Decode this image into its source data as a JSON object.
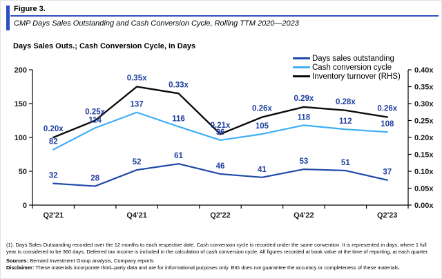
{
  "figure": {
    "label": "Figure 3.",
    "title": "CMP Days Sales Outstanding and Cash Conversion Cycle, Rolling TTM 2020—2023",
    "axis_caption": "Days Sales Outs.; Cash Conversion Cycle, in Days"
  },
  "colors": {
    "accent_blue": "#2E4EC4",
    "axis_line": "#000000",
    "data_label": "#1F3FA0"
  },
  "chart_data": {
    "type": "line",
    "title": "CMP Days Sales Outstanding and Cash Conversion Cycle, Rolling TTM 2020—2023",
    "axis_caption": "Days Sales Outs.; Cash Conversion Cycle, in Days",
    "grid": false,
    "legend_position": "top-right",
    "point_count": 9,
    "x_tick_labels": [
      {
        "point": 0,
        "label": "Q2'21"
      },
      {
        "point": 2,
        "label": "Q4'21"
      },
      {
        "point": 4,
        "label": "Q2'22"
      },
      {
        "point": 6,
        "label": "Q4'22"
      },
      {
        "point": 8,
        "label": "Q2'23"
      }
    ],
    "left_axis": {
      "min": 0,
      "max": 200,
      "ticks": [
        0,
        50,
        100,
        150,
        200
      ]
    },
    "right_axis": {
      "min": 0,
      "max": 0.4,
      "ticks": [
        {
          "value": 0.0,
          "label": "0.00x"
        },
        {
          "value": 0.05,
          "label": "0.05x"
        },
        {
          "value": 0.1,
          "label": "0.10x"
        },
        {
          "value": 0.15,
          "label": "0.15x"
        },
        {
          "value": 0.2,
          "label": "0.20x"
        },
        {
          "value": 0.25,
          "label": "0.25x"
        },
        {
          "value": 0.3,
          "label": "0.30x"
        },
        {
          "value": 0.35,
          "label": "0.35x"
        },
        {
          "value": 0.4,
          "label": "0.40x"
        }
      ]
    },
    "series": [
      {
        "name": "Days sales outstanding",
        "axis": "left",
        "color": "#1F49A8",
        "values": [
          32,
          28,
          52,
          61,
          46,
          41,
          53,
          51,
          37
        ],
        "labels": [
          "32",
          "28",
          "52",
          "61",
          "46",
          "41",
          "53",
          "51",
          "37"
        ]
      },
      {
        "name": "Cash conversion cycle",
        "axis": "left",
        "color": "#3FAEF4",
        "values": [
          82,
          114,
          137,
          116,
          96,
          105,
          118,
          112,
          108
        ],
        "labels": [
          "82",
          "114",
          "137",
          "116",
          "96",
          "105",
          "118",
          "112",
          "108"
        ]
      },
      {
        "name": "Inventory turnover (RHS)",
        "axis": "right",
        "color": "#0B0B0B",
        "values": [
          0.2,
          0.25,
          0.35,
          0.33,
          0.21,
          0.26,
          0.29,
          0.28,
          0.26
        ],
        "labels": [
          "0.20x",
          "0.25x",
          "0.35x",
          "0.33x",
          "0.21x",
          "0.26x",
          "0.29x",
          "0.28x",
          "0.26x"
        ]
      }
    ]
  },
  "footnotes": {
    "note": "(1). Days Sales Outstanding recorded over the 12 months to each respective date. Cash conversion cycle is recorded under the same convention. It is represented in days, where 1 full year is considered to be 360 days. Deferred tax income is included in the calculation of cash conversion cycle. All figures recorded at book value at the time of reporting, at each quarter.",
    "sources_label": "Sources:",
    "sources": "Bernard Investment Group analysis, Company reports",
    "disclaimer_label": "Disclaimer:",
    "disclaimer": "These materials incorporate third–party data and are for informational purposes only. BIG does not guarantee the accuracy or completeness of these materials."
  }
}
